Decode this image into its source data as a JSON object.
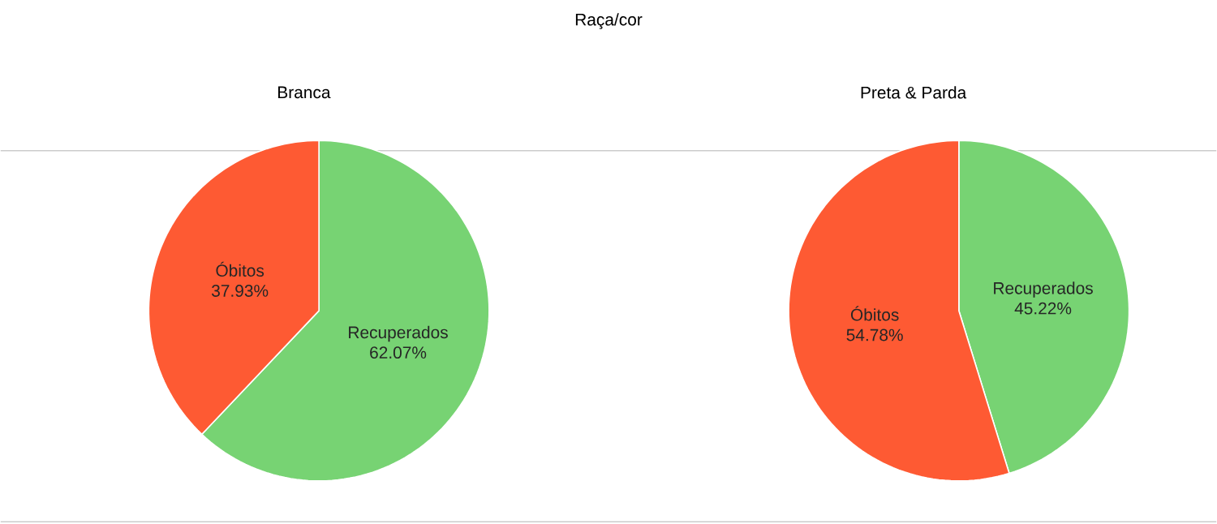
{
  "chart_data": [
    {
      "type": "pie",
      "title": "Branca",
      "annotations": [
        "Raça/cor"
      ],
      "categories": [
        "Recuperados",
        "Óbitos"
      ],
      "values": [
        62.07,
        37.93
      ],
      "colors": [
        "#77d373",
        "#fe5a33"
      ],
      "value_labels": [
        "62.07%",
        "37.93%"
      ]
    },
    {
      "type": "pie",
      "title": "Preta & Parda",
      "categories": [
        "Recuperados",
        "Óbitos"
      ],
      "values": [
        45.22,
        54.78
      ],
      "colors": [
        "#77d373",
        "#fe5a33"
      ],
      "value_labels": [
        "45.22%",
        "54.78%"
      ]
    }
  ]
}
